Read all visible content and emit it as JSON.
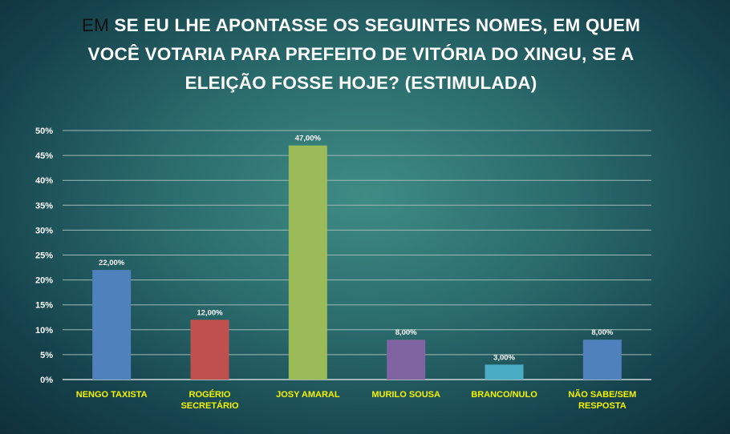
{
  "chart_data": {
    "type": "bar",
    "title_prefix": "EM",
    "title": "SE EU LHE APONTASSE OS SEGUINTES NOMES, EM QUEM VOCÊ VOTARIA PARA PREFEITO DE VITÓRIA DO XINGU, SE A ELEIÇÃO FOSSE HOJE? (ESTIMULADA)",
    "categories": [
      [
        "NENGO TAXISTA"
      ],
      [
        "ROGÉRIO",
        "SECRETÁRIO"
      ],
      [
        "JOSY AMARAL"
      ],
      [
        "MURILO SOUSA"
      ],
      [
        "BRANCO/NULO"
      ],
      [
        "NÃO SABE/SEM",
        "RESPOSTA"
      ]
    ],
    "values": [
      22,
      12,
      47,
      8,
      3,
      8
    ],
    "data_labels": [
      "22,00%",
      "12,00%",
      "47,00%",
      "8,00%",
      "3,00%",
      "8,00%"
    ],
    "bar_colors": [
      "#4f81bd",
      "#c0504d",
      "#9bbb59",
      "#8064a2",
      "#4bacc6",
      "#4f81bd"
    ],
    "ylim": [
      0,
      50
    ],
    "yticks": [
      "0%",
      "5%",
      "10%",
      "15%",
      "20%",
      "25%",
      "30%",
      "35%",
      "40%",
      "45%",
      "50%"
    ],
    "grid": true,
    "legend": "none"
  }
}
